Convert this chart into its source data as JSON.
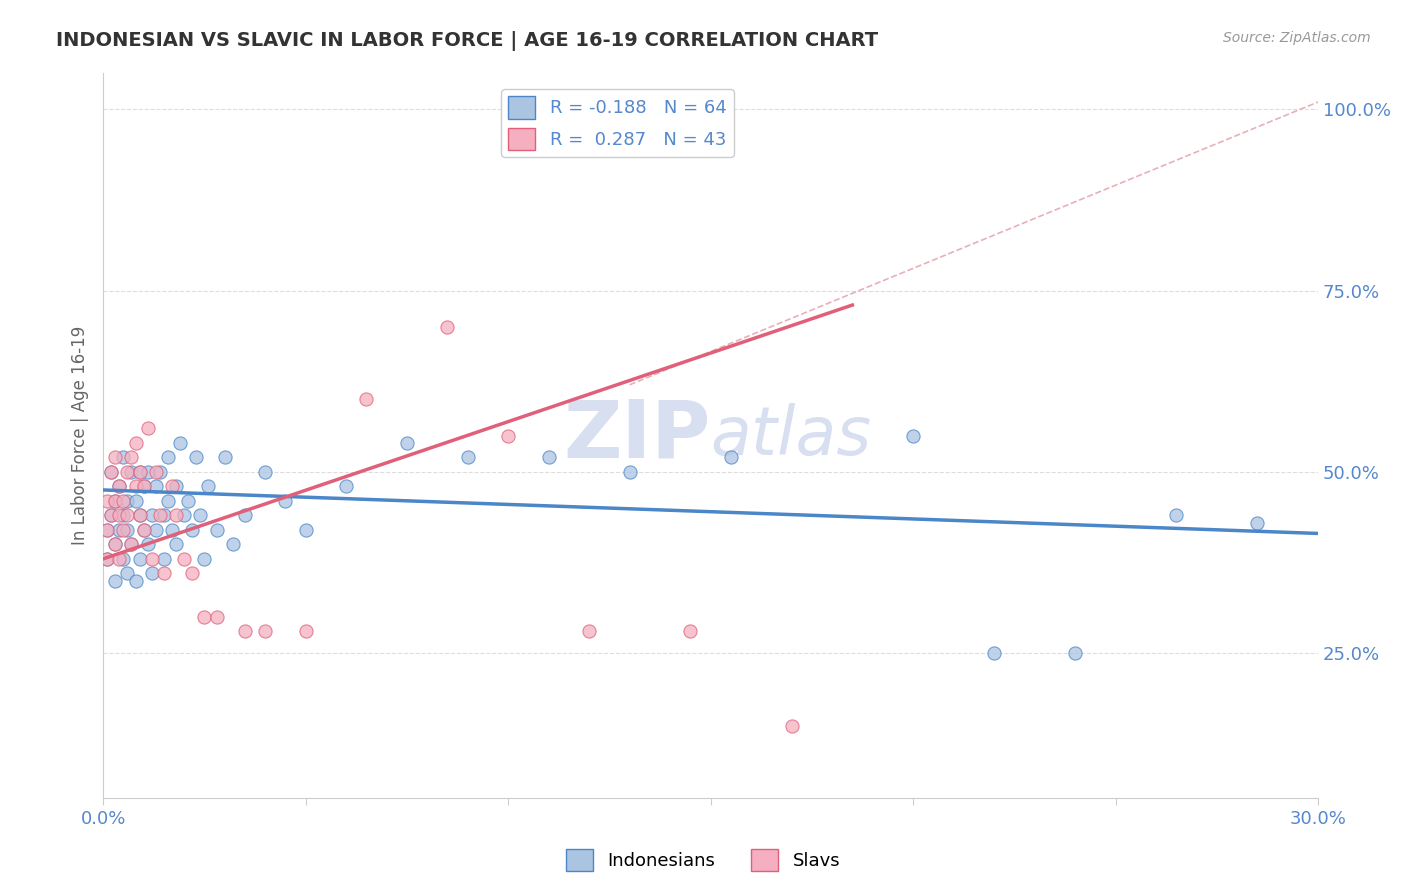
{
  "title": "INDONESIAN VS SLAVIC IN LABOR FORCE | AGE 16-19 CORRELATION CHART",
  "source_text": "Source: ZipAtlas.com",
  "ylabel": "In Labor Force | Age 16-19",
  "xlim": [
    0.0,
    0.3
  ],
  "ylim": [
    0.05,
    1.05
  ],
  "xticks": [
    0.0,
    0.05,
    0.1,
    0.15,
    0.2,
    0.25,
    0.3
  ],
  "xticklabels": [
    "0.0%",
    "",
    "",
    "",
    "",
    "",
    "30.0%"
  ],
  "yticks": [
    0.25,
    0.5,
    0.75,
    1.0
  ],
  "yticklabels": [
    "25.0%",
    "50.0%",
    "75.0%",
    "100.0%"
  ],
  "blue_R": -0.188,
  "blue_N": 64,
  "pink_R": 0.287,
  "pink_N": 43,
  "blue_color": "#aac4e2",
  "pink_color": "#f5afc0",
  "blue_line_color": "#4a86c8",
  "pink_line_color": "#e0607a",
  "ref_line_color": "#e8b0b8",
  "grid_color": "#dddddd",
  "background_color": "#ffffff",
  "watermark_color": "#d8dff0",
  "blue_line_x0": 0.0,
  "blue_line_x1": 0.3,
  "blue_line_y0": 0.475,
  "blue_line_y1": 0.415,
  "pink_line_x0": 0.0,
  "pink_line_x1": 0.185,
  "pink_line_y0": 0.38,
  "pink_line_y1": 0.73,
  "ref_line_x0": 0.13,
  "ref_line_x1": 0.3,
  "ref_line_y0": 0.62,
  "ref_line_y1": 1.01,
  "blue_scatter_x": [
    0.001,
    0.001,
    0.002,
    0.002,
    0.003,
    0.003,
    0.003,
    0.004,
    0.004,
    0.005,
    0.005,
    0.005,
    0.006,
    0.006,
    0.006,
    0.007,
    0.007,
    0.008,
    0.008,
    0.009,
    0.009,
    0.009,
    0.01,
    0.01,
    0.011,
    0.011,
    0.012,
    0.012,
    0.013,
    0.013,
    0.014,
    0.015,
    0.015,
    0.016,
    0.016,
    0.017,
    0.018,
    0.018,
    0.019,
    0.02,
    0.021,
    0.022,
    0.023,
    0.024,
    0.025,
    0.026,
    0.028,
    0.03,
    0.032,
    0.035,
    0.04,
    0.045,
    0.05,
    0.06,
    0.075,
    0.09,
    0.11,
    0.13,
    0.155,
    0.2,
    0.22,
    0.24,
    0.265,
    0.285
  ],
  "blue_scatter_y": [
    0.42,
    0.38,
    0.44,
    0.5,
    0.4,
    0.46,
    0.35,
    0.42,
    0.48,
    0.38,
    0.44,
    0.52,
    0.36,
    0.42,
    0.46,
    0.4,
    0.5,
    0.35,
    0.46,
    0.38,
    0.44,
    0.5,
    0.42,
    0.48,
    0.4,
    0.5,
    0.36,
    0.44,
    0.42,
    0.48,
    0.5,
    0.44,
    0.38,
    0.46,
    0.52,
    0.42,
    0.48,
    0.4,
    0.54,
    0.44,
    0.46,
    0.42,
    0.52,
    0.44,
    0.38,
    0.48,
    0.42,
    0.52,
    0.4,
    0.44,
    0.5,
    0.46,
    0.42,
    0.48,
    0.54,
    0.52,
    0.52,
    0.5,
    0.52,
    0.55,
    0.25,
    0.25,
    0.44,
    0.43
  ],
  "pink_scatter_x": [
    0.001,
    0.001,
    0.001,
    0.002,
    0.002,
    0.003,
    0.003,
    0.003,
    0.004,
    0.004,
    0.004,
    0.005,
    0.005,
    0.006,
    0.006,
    0.007,
    0.007,
    0.008,
    0.008,
    0.009,
    0.009,
    0.01,
    0.01,
    0.011,
    0.012,
    0.013,
    0.014,
    0.015,
    0.017,
    0.018,
    0.02,
    0.022,
    0.025,
    0.028,
    0.035,
    0.04,
    0.05,
    0.065,
    0.085,
    0.1,
    0.12,
    0.145,
    0.17
  ],
  "pink_scatter_y": [
    0.42,
    0.38,
    0.46,
    0.44,
    0.5,
    0.4,
    0.46,
    0.52,
    0.38,
    0.44,
    0.48,
    0.42,
    0.46,
    0.5,
    0.44,
    0.4,
    0.52,
    0.48,
    0.54,
    0.44,
    0.5,
    0.42,
    0.48,
    0.56,
    0.38,
    0.5,
    0.44,
    0.36,
    0.48,
    0.44,
    0.38,
    0.36,
    0.3,
    0.3,
    0.28,
    0.28,
    0.28,
    0.6,
    0.7,
    0.55,
    0.28,
    0.28,
    0.15
  ]
}
